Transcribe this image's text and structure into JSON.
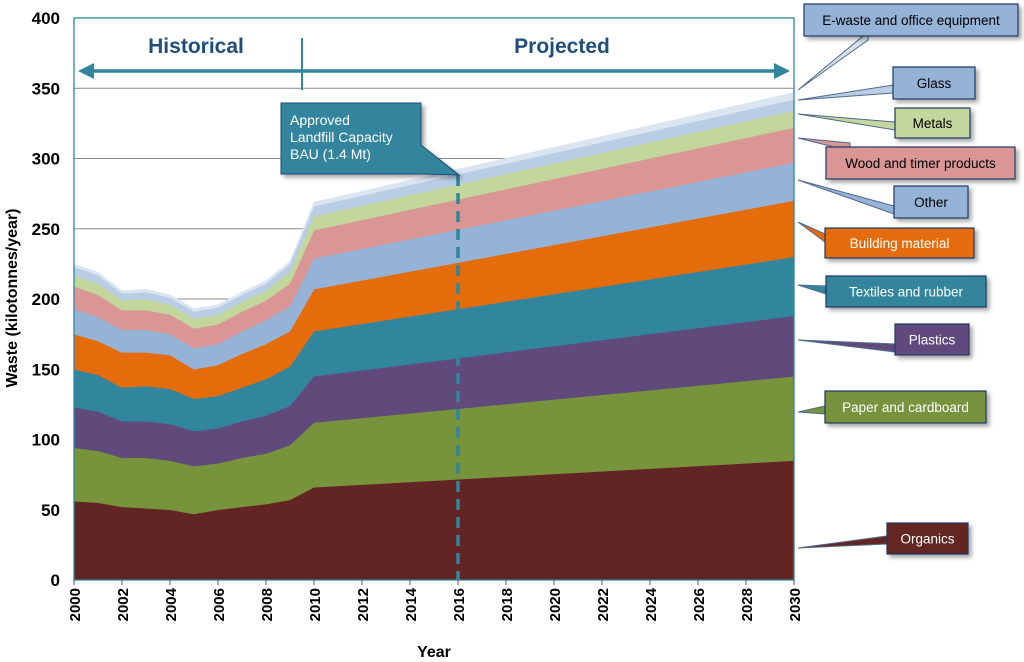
{
  "chart_data": {
    "type": "area",
    "stacked": true,
    "xlabel": "Year",
    "ylabel": "Waste (kilotonnes/year)",
    "xlim": [
      2000,
      2030
    ],
    "ylim": [
      0,
      400
    ],
    "grid": true,
    "x": [
      2000,
      2001,
      2002,
      2003,
      2004,
      2005,
      2006,
      2007,
      2008,
      2009,
      2010,
      2030
    ],
    "x_ticks": [
      "2000",
      "2002",
      "2004",
      "2006",
      "2008",
      "2010",
      "2012",
      "2014",
      "2016",
      "2018",
      "2020",
      "2022",
      "2024",
      "2026",
      "2028",
      "2030"
    ],
    "y_ticks": [
      "0",
      "50",
      "100",
      "150",
      "200",
      "250",
      "300",
      "350",
      "400"
    ],
    "series": [
      {
        "name": "Organics",
        "color": "#632523",
        "values": [
          56,
          55,
          52,
          51,
          50,
          47,
          50,
          52,
          54,
          57,
          66,
          85
        ]
      },
      {
        "name": "Paper and cardboard",
        "color": "#77933c",
        "values": [
          38,
          37,
          35,
          36,
          35,
          34,
          33,
          35,
          36,
          39,
          46,
          60
        ]
      },
      {
        "name": "Plastics",
        "color": "#604a7b",
        "values": [
          29,
          28,
          26,
          26,
          26,
          25,
          25,
          26,
          27,
          28,
          33,
          43
        ]
      },
      {
        "name": "Textiles and rubber",
        "color": "#31859c",
        "values": [
          27,
          26,
          24,
          25,
          25,
          23,
          23,
          24,
          26,
          28,
          32,
          42
        ]
      },
      {
        "name": "Building material",
        "color": "#e46c0a",
        "values": [
          25,
          24,
          25,
          24,
          24,
          21,
          22,
          24,
          25,
          25,
          30,
          40
        ]
      },
      {
        "name": "Other",
        "color": "#95b3d7",
        "values": [
          18,
          17,
          16,
          16,
          15,
          15,
          15,
          16,
          17,
          18,
          22,
          27
        ]
      },
      {
        "name": "Wood and timer products",
        "color": "#d99694",
        "values": [
          16,
          16,
          14,
          14,
          14,
          14,
          14,
          14,
          14,
          16,
          20,
          25
        ]
      },
      {
        "name": "Metals",
        "color": "#c3d69b",
        "values": [
          8,
          8,
          7,
          8,
          7,
          7,
          7,
          7,
          7,
          8,
          10,
          12
        ]
      },
      {
        "name": "Glass",
        "color": "#b9cde5",
        "values": [
          6,
          6,
          5,
          5,
          5,
          5,
          5,
          5,
          5,
          6,
          7,
          8
        ]
      },
      {
        "name": "E-waste and office equipment",
        "color": "#dbe5f1",
        "values": [
          2,
          2,
          2,
          2,
          2,
          2,
          2,
          2,
          2,
          2,
          3,
          5
        ]
      }
    ],
    "annotations": {
      "historical": "Historical",
      "projected": "Projected",
      "divider_year": 2009.5,
      "capacity_label": [
        "Approved",
        "Landfill Capacity",
        "BAU (1.4 Mt)"
      ],
      "capacity_year": 2016
    }
  }
}
